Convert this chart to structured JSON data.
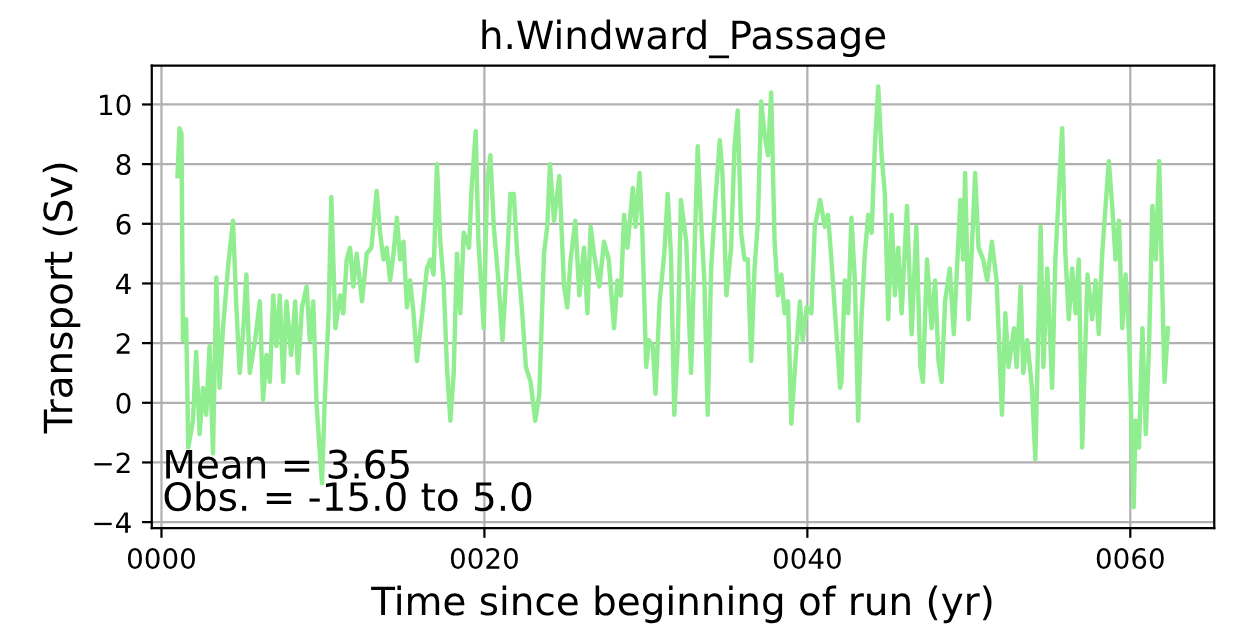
{
  "chart_data": {
    "type": "line",
    "title": "h.Windward_Passage",
    "xlabel": "Time since beginning of run (yr)",
    "ylabel": "Transport (Sv)",
    "annotations": [
      "Mean = 3.65",
      "Obs. = -15.0 to 5.0"
    ],
    "xlim": [
      -0.6,
      65.2
    ],
    "ylim": [
      -4.2,
      11.3
    ],
    "xticks": [
      {
        "value": 0,
        "label": "0000"
      },
      {
        "value": 20,
        "label": "0020"
      },
      {
        "value": 40,
        "label": "0040"
      },
      {
        "value": 60,
        "label": "0060"
      }
    ],
    "yticks": [
      -4,
      -2,
      0,
      2,
      4,
      6,
      8,
      10
    ],
    "grid": true,
    "series": [
      {
        "color": "#90ee90",
        "x": [
          0.99,
          1.12,
          1.24,
          1.33,
          1.53,
          1.66,
          1.95,
          2.15,
          2.36,
          2.57,
          2.77,
          2.98,
          3.19,
          3.4,
          3.6,
          3.81,
          4.14,
          4.43,
          4.64,
          4.84,
          5.05,
          5.26,
          5.47,
          5.8,
          6.09,
          6.29,
          6.5,
          6.71,
          6.92,
          7.12,
          7.33,
          7.54,
          7.74,
          8.03,
          8.28,
          8.45,
          8.7,
          8.99,
          9.19,
          9.4,
          9.61,
          9.94,
          10.1,
          10.35,
          10.52,
          10.77,
          11.06,
          11.26,
          11.47,
          11.68,
          11.88,
          12.09,
          12.42,
          12.71,
          13.0,
          13.33,
          13.54,
          13.75,
          13.95,
          14.16,
          14.37,
          14.58,
          14.78,
          14.99,
          15.2,
          15.4,
          15.61,
          15.82,
          16.15,
          16.44,
          16.65,
          16.85,
          17.06,
          17.27,
          17.47,
          17.68,
          17.89,
          18.1,
          18.3,
          18.51,
          18.72,
          19.05,
          19.21,
          19.46,
          19.63,
          19.96,
          20.17,
          20.37,
          20.58,
          20.87,
          21.12,
          21.41,
          21.61,
          21.82,
          22.03,
          22.32,
          22.57,
          22.86,
          23.15,
          23.4,
          23.69,
          23.89,
          24.06,
          24.31,
          24.64,
          24.93,
          25.13,
          25.34,
          25.63,
          25.88,
          26.17,
          26.38,
          26.58,
          26.79,
          27.12,
          27.41,
          27.7,
          28.03,
          28.24,
          28.45,
          28.65,
          28.86,
          29.19,
          29.36,
          29.61,
          29.77,
          30.02,
          30.19,
          30.43,
          30.6,
          30.85,
          31.14,
          31.35,
          31.55,
          31.76,
          31.97,
          32.17,
          32.5,
          32.8,
          33.0,
          33.21,
          33.42,
          33.62,
          33.83,
          34.04,
          34.33,
          34.58,
          34.74,
          34.99,
          35.28,
          35.49,
          35.69,
          35.9,
          36.11,
          36.31,
          36.52,
          36.73,
          36.94,
          37.14,
          37.35,
          37.56,
          37.76,
          37.97,
          38.18,
          38.39,
          38.59,
          38.8,
          39.01,
          39.21,
          39.54,
          39.71,
          39.96,
          40.25,
          40.46,
          40.79,
          41.08,
          41.28,
          41.49,
          41.78,
          42.03,
          42.11,
          42.32,
          42.53,
          42.73,
          42.94,
          43.15,
          43.35,
          43.56,
          43.77,
          43.98,
          44.18,
          44.39,
          44.6,
          44.8,
          45.01,
          45.22,
          45.42,
          45.63,
          45.84,
          46.17,
          46.46,
          46.75,
          47.0,
          47.16,
          47.41,
          47.7,
          47.91,
          48.12,
          48.32,
          48.53,
          48.82,
          49.07,
          49.23,
          49.48,
          49.65,
          49.77,
          49.98,
          50.19,
          50.39,
          50.6,
          50.89,
          51.14,
          51.43,
          51.72,
          52.05,
          52.26,
          52.46,
          52.8,
          52.96,
          53.21,
          53.37,
          53.62,
          53.91,
          54.12,
          54.45,
          54.62,
          54.86,
          55.16,
          55.36,
          55.57,
          55.78,
          55.98,
          56.19,
          56.4,
          56.61,
          56.81,
          57.02,
          57.35,
          57.64,
          57.85,
          58.05,
          58.26,
          58.47,
          58.67,
          58.88,
          59.09,
          59.3,
          59.5,
          59.71,
          59.92,
          60.21,
          60.33,
          60.54,
          60.75,
          60.96,
          61.16,
          61.37,
          61.58,
          61.79,
          62.0,
          62.12,
          62.33
        ],
        "values": [
          7.6,
          9.2,
          9.0,
          2.1,
          2.8,
          -1.5,
          -0.6,
          1.7,
          -1.05,
          0.5,
          -0.4,
          1.9,
          -1.7,
          4.2,
          0.5,
          2.5,
          4.65,
          6.1,
          3.2,
          1.0,
          2.3,
          4.3,
          1.0,
          2.1,
          3.4,
          0.1,
          1.6,
          0.7,
          3.6,
          1.9,
          3.6,
          0.7,
          3.4,
          1.6,
          3.4,
          1.0,
          3.2,
          3.9,
          2.1,
          3.4,
          -0.1,
          -2.7,
          -0.1,
          3.0,
          6.9,
          2.5,
          3.6,
          3.0,
          4.8,
          5.2,
          3.9,
          5.0,
          3.4,
          5.0,
          5.2,
          7.1,
          5.7,
          4.8,
          5.2,
          4.1,
          5.0,
          6.2,
          4.8,
          5.4,
          3.2,
          4.1,
          3.0,
          1.4,
          3.0,
          4.5,
          4.8,
          4.3,
          8.0,
          5.4,
          4.1,
          1.2,
          -0.6,
          1.0,
          5.0,
          3.0,
          5.7,
          5.2,
          7.2,
          9.1,
          5.4,
          2.5,
          7.4,
          8.3,
          5.9,
          4.1,
          2.1,
          4.8,
          7.0,
          7.0,
          5.0,
          3.2,
          1.2,
          0.7,
          -0.6,
          0.3,
          5.0,
          5.9,
          8.0,
          6.1,
          7.6,
          3.9,
          3.2,
          4.8,
          6.1,
          3.6,
          5.2,
          3.0,
          5.9,
          5.0,
          3.9,
          5.4,
          4.8,
          2.5,
          4.1,
          3.6,
          6.3,
          5.2,
          7.2,
          5.9,
          7.7,
          5.9,
          1.2,
          2.1,
          1.9,
          0.3,
          3.4,
          5.0,
          7.0,
          5.0,
          -0.4,
          1.9,
          6.8,
          5.4,
          1.0,
          4.8,
          8.6,
          6.1,
          4.1,
          -0.4,
          4.5,
          7.0,
          8.8,
          7.7,
          3.6,
          5.2,
          8.6,
          9.8,
          5.7,
          4.8,
          4.8,
          1.4,
          4.5,
          6.1,
          10.1,
          9.0,
          8.3,
          10.4,
          5.4,
          3.6,
          4.3,
          3.0,
          3.4,
          -0.7,
          1.0,
          3.4,
          2.1,
          3.2,
          3.0,
          5.9,
          6.8,
          5.9,
          6.3,
          4.8,
          2.5,
          0.5,
          0.7,
          4.1,
          3.0,
          6.2,
          4.1,
          -0.6,
          2.8,
          5.0,
          6.3,
          5.7,
          8.6,
          10.6,
          8.3,
          7.0,
          2.8,
          6.3,
          3.6,
          5.2,
          3.0,
          6.6,
          2.3,
          5.9,
          1.2,
          0.7,
          4.8,
          2.5,
          4.1,
          1.4,
          0.7,
          3.4,
          4.5,
          2.3,
          4.1,
          6.8,
          4.8,
          7.7,
          2.8,
          5.2,
          7.7,
          5.2,
          4.8,
          4.1,
          5.4,
          4.1,
          -0.4,
          3.0,
          1.2,
          2.5,
          1.2,
          3.9,
          1.0,
          2.1,
          0.5,
          -1.9,
          5.9,
          1.2,
          4.5,
          0.5,
          4.8,
          7.0,
          9.2,
          5.0,
          2.8,
          4.5,
          3.0,
          4.8,
          -1.5,
          4.3,
          2.8,
          4.1,
          2.3,
          5.0,
          6.6,
          8.1,
          6.6,
          4.8,
          6.1,
          2.5,
          4.3,
          2.3,
          -3.5,
          -0.6,
          -1.5,
          2.5,
          -1.05,
          1.9,
          6.6,
          4.8,
          8.1,
          3.4,
          0.7,
          2.5
        ]
      }
    ]
  }
}
